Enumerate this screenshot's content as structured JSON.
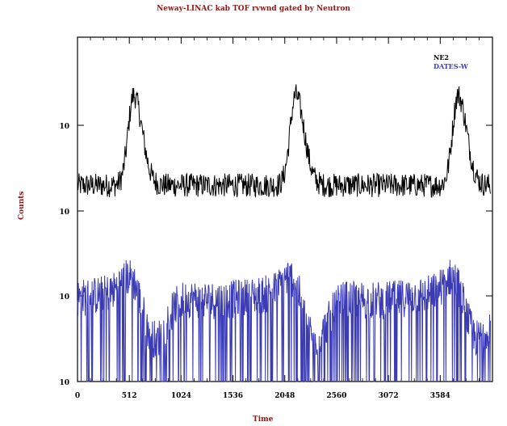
{
  "chart_data": {
    "type": "line",
    "title": "Neway-LINAC kab TOF rvwnd gated by Neutron",
    "xlabel": "Time",
    "ylabel": "Counts",
    "x_ticks": [
      "0",
      "512",
      "1024",
      "1536",
      "2048",
      "2560",
      "3072",
      "3584"
    ],
    "y_ticks": [
      "10",
      "10",
      "10",
      "10"
    ],
    "xlim": [
      0,
      4100
    ],
    "log_scale_y": true,
    "grid": false,
    "legend_position": "top-right",
    "series": [
      {
        "name": "NE2",
        "color": "#000000",
        "baseline_level": 2.3,
        "peaks_x": [
          555,
          2155,
          3760
        ],
        "peak_level": 3.3
      },
      {
        "name": "DATES-W",
        "color": "#3b3bb5",
        "baseline_level": 1.0,
        "peaks_x": [
          540,
          2130,
          3730
        ],
        "peak_level": 1.25
      }
    ]
  }
}
